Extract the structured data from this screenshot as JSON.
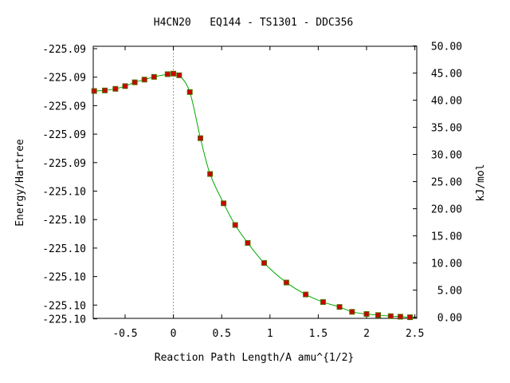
{
  "chart_data": {
    "type": "line",
    "title": "H4CN20   EQ144 - TS1301 - DDC356",
    "xlabel": "Reaction Path Length/A amu^{1/2}",
    "ylabel": "Energy/Hartree",
    "y2label": "kJ/mol",
    "xlim": [
      -0.83,
      2.52
    ],
    "y2lim": [
      0.0,
      50.0
    ],
    "x_ticks": [
      {
        "value": -0.5,
        "label": "-0.5"
      },
      {
        "value": 0,
        "label": "0"
      },
      {
        "value": 0.5,
        "label": "0.5"
      },
      {
        "value": 1,
        "label": "1"
      },
      {
        "value": 1.5,
        "label": "1.5"
      },
      {
        "value": 2,
        "label": "2"
      },
      {
        "value": 2.5,
        "label": "2.5"
      }
    ],
    "y_left_ticks": [
      {
        "kj": 49.5,
        "label": "-225.09"
      },
      {
        "kj": 44.25,
        "label": "-225.09"
      },
      {
        "kj": 39.0,
        "label": "-225.09"
      },
      {
        "kj": 33.75,
        "label": "-225.09"
      },
      {
        "kj": 28.5,
        "label": "-225.09"
      },
      {
        "kj": 23.25,
        "label": "-225.10"
      },
      {
        "kj": 18.0,
        "label": "-225.10"
      },
      {
        "kj": 12.75,
        "label": "-225.10"
      },
      {
        "kj": 7.5,
        "label": "-225.10"
      },
      {
        "kj": 2.25,
        "label": "-225.10"
      },
      {
        "kj": -0.3,
        "label": "-225.10"
      }
    ],
    "y_right_ticks": [
      {
        "value": 0.0,
        "label": "0.00"
      },
      {
        "value": 5.0,
        "label": "5.00"
      },
      {
        "value": 10.0,
        "label": "10.00"
      },
      {
        "value": 15.0,
        "label": "15.00"
      },
      {
        "value": 20.0,
        "label": "20.00"
      },
      {
        "value": 25.0,
        "label": "25.00"
      },
      {
        "value": 30.0,
        "label": "30.00"
      },
      {
        "value": 35.0,
        "label": "35.00"
      },
      {
        "value": 40.0,
        "label": "40.00"
      },
      {
        "value": 45.0,
        "label": "45.00"
      },
      {
        "value": 50.0,
        "label": "50.00"
      }
    ],
    "ts_marker_x": 0,
    "line_color": "#00aa00",
    "marker_color": "#cc0000",
    "marker_edge": "#556b00",
    "marker_edge_color": "#556b00",
    "points": [
      [
        -0.82,
        41.7
      ],
      [
        -0.71,
        41.8
      ],
      [
        -0.6,
        42.1
      ],
      [
        -0.5,
        42.6
      ],
      [
        -0.4,
        43.3
      ],
      [
        -0.3,
        43.8
      ],
      [
        -0.2,
        44.3
      ],
      [
        -0.06,
        44.8
      ],
      [
        0.0,
        44.9
      ],
      [
        0.06,
        44.6
      ],
      [
        0.17,
        41.5
      ],
      [
        0.28,
        33.0
      ],
      [
        0.38,
        26.4
      ],
      [
        0.52,
        21.0
      ],
      [
        0.64,
        17.0
      ],
      [
        0.77,
        13.7
      ],
      [
        0.94,
        10.0
      ],
      [
        1.17,
        6.4
      ],
      [
        1.37,
        4.2
      ],
      [
        1.55,
        2.8
      ],
      [
        1.72,
        1.9
      ],
      [
        1.85,
        1.0
      ],
      [
        2.0,
        0.6
      ],
      [
        2.12,
        0.4
      ],
      [
        2.25,
        0.2
      ],
      [
        2.35,
        0.1
      ],
      [
        2.45,
        0.0
      ]
    ]
  }
}
